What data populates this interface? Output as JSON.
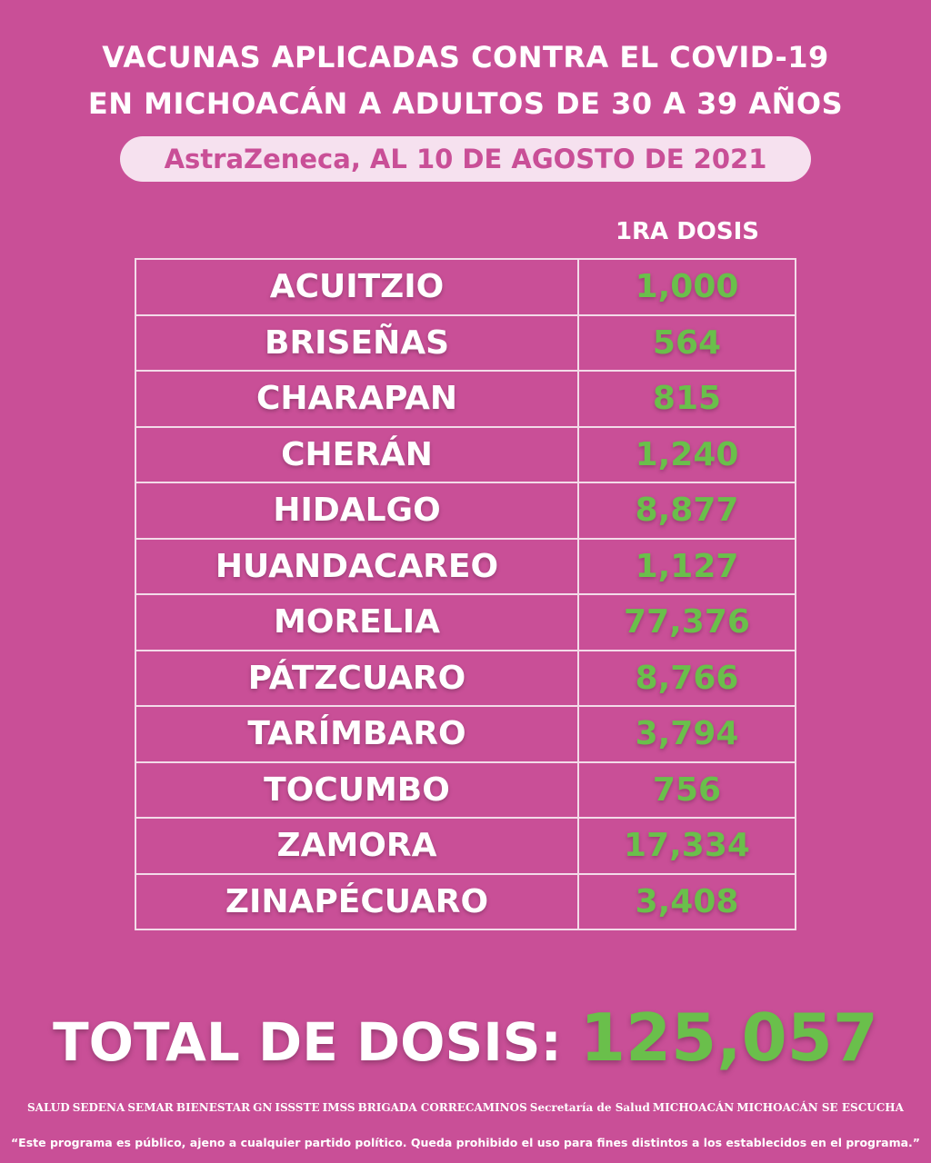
{
  "header": {
    "title_line1": "VACUNAS APLICADAS CONTRA EL COVID-19",
    "title_line2": "EN MICHOACÁN A ADULTOS DE 30 A 39 AÑOS",
    "subtitle": "AstraZeneca, AL 10 DE AGOSTO DE 2021"
  },
  "table": {
    "column_header": "1RA DOSIS",
    "rows": [
      {
        "municipio": "ACUITZIO",
        "dosis": "1,000"
      },
      {
        "municipio": "BRISEÑAS",
        "dosis": "564"
      },
      {
        "municipio": "CHARAPAN",
        "dosis": "815"
      },
      {
        "municipio": "CHERÁN",
        "dosis": "1,240"
      },
      {
        "municipio": "HIDALGO",
        "dosis": "8,877"
      },
      {
        "municipio": "HUANDACAREO",
        "dosis": "1,127"
      },
      {
        "municipio": "MORELIA",
        "dosis": "77,376"
      },
      {
        "municipio": "PÁTZCUARO",
        "dosis": "8,766"
      },
      {
        "municipio": "TARÍMBARO",
        "dosis": "3,794"
      },
      {
        "municipio": "TOCUMBO",
        "dosis": "756"
      },
      {
        "municipio": "ZAMORA",
        "dosis": "17,334"
      },
      {
        "municipio": "ZINAPÉCUARO",
        "dosis": "3,408"
      }
    ]
  },
  "total": {
    "label": "TOTAL DE DOSIS:",
    "value": "125,057"
  },
  "footer": {
    "logos": [
      "SALUD",
      "SEDENA",
      "SEMAR",
      "BIENESTAR",
      "GN",
      "ISSSTE",
      "IMSS",
      "BRIGADA CORRECAMINOS",
      "Secretaría de Salud",
      "MICHOACÁN",
      "MICHOACÁN SE ESCUCHA"
    ],
    "disclaimer": "“Este programa es público, ajeno a cualquier partido político. Queda prohibido el uso para fines distintos a los establecidos en el programa.”"
  },
  "colors": {
    "background": "#c94f97",
    "accent_green": "#6abf4b",
    "pill": "#f6e1ef"
  }
}
